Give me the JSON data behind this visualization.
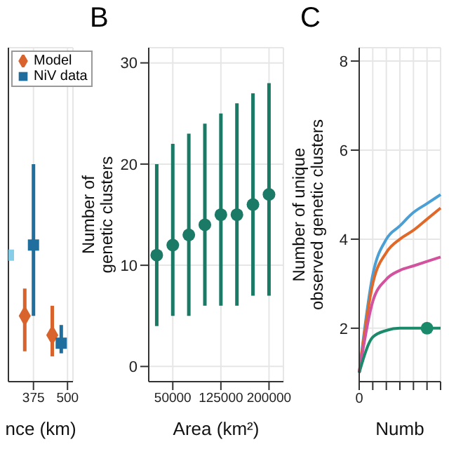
{
  "chart_data": [
    {
      "type": "scatter",
      "xlabel": "nce (km)",
      "xlim": [
        283,
        520
      ],
      "xticks": [
        375,
        500
      ],
      "ylim": [
        -1.5,
        31.5
      ],
      "tick_labels": "x",
      "grid": true,
      "legend": "top",
      "series": [
        {
          "name": "Model",
          "color": "#d8632c",
          "marker": "diamond",
          "x": [
            343,
            444
          ],
          "values": [
            5,
            3.1
          ],
          "errors": [
            [
              1.5,
              7.7
            ],
            [
              1,
              6
            ]
          ]
        },
        {
          "name": "NiV data",
          "color": "#1f6e9e",
          "marker": "square",
          "x": [
            375,
            477
          ],
          "values": [
            12,
            2.3
          ],
          "errors": [
            [
              5,
              20
            ],
            [
              1.3,
              4.1
            ]
          ]
        },
        {
          "color": "#88cde8",
          "marker": "square",
          "x": [
            283
          ],
          "values": [
            11
          ]
        }
      ]
    },
    {
      "type": "scatter",
      "title": "B",
      "xlabel": "Area (km²)",
      "ylabel": "Number of genetic clusters",
      "x": [
        25000,
        50000,
        75000,
        100000,
        125000,
        150000,
        175000,
        200000
      ],
      "values": [
        11,
        12,
        13,
        14,
        15,
        15,
        16,
        17
      ],
      "errors": [
        [
          4,
          20
        ],
        [
          5,
          22
        ],
        [
          5,
          23
        ],
        [
          6,
          24
        ],
        [
          6,
          25
        ],
        [
          6,
          26
        ],
        [
          7,
          27
        ],
        [
          7,
          28
        ]
      ],
      "color": "#1b7a66",
      "marker": "circle",
      "xlim": [
        12500,
        222500
      ],
      "xticks": [
        50000,
        125000,
        200000
      ],
      "ylim": [
        -1.5,
        31.5
      ],
      "yticks": [
        0,
        10,
        20,
        30
      ],
      "grid": true
    },
    {
      "type": "line",
      "title": "C",
      "xlabel": "Numb",
      "ylabel": "Number of unique observed genetic clusters",
      "categories": [
        "0",
        null,
        null,
        null,
        null,
        null,
        null
      ],
      "ylim": [
        0.8,
        8.3
      ],
      "yticks": [
        2,
        4,
        6,
        8
      ],
      "grid": true,
      "marker": "none",
      "line_style": "solid",
      "series": [
        {
          "color": "#4a9fd4",
          "values": [
            1,
            3.2,
            4,
            4.3,
            4.6,
            4.8,
            5
          ]
        },
        {
          "color": "#e0692a",
          "values": [
            1,
            3,
            3.7,
            4,
            4.2,
            4.45,
            4.7
          ]
        },
        {
          "color": "#d2529e",
          "values": [
            1,
            2.6,
            3.1,
            3.3,
            3.4,
            3.5,
            3.6
          ]
        },
        {
          "color": "#1b8a6b",
          "values": [
            1,
            1.8,
            1.95,
            2,
            2,
            2,
            2
          ]
        },
        {
          "type": "scatter",
          "color": "#1b8a6b",
          "marker": "circle",
          "values": [
            null,
            null,
            null,
            null,
            null,
            2,
            null
          ]
        }
      ]
    }
  ]
}
